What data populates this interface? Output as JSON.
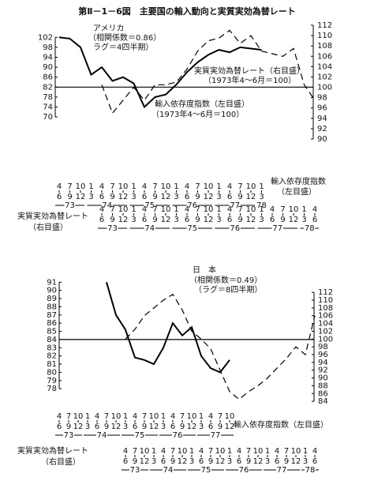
{
  "title": "第Ⅱ－1－6図　主要国の輸入動向と実質実効為替レート",
  "chart_data": [
    {
      "type": "line",
      "annotations": [
        "アメリカ",
        "（相関係数＝0.86）",
        "ラグ＝4四半期）",
        "実質実効為替レート（右目盛）",
        "（1973年4～6月＝100）",
        "輸入依存度指数（左目盛）",
        "（1973年4～6月＝100）"
      ],
      "categories": [
        "4",
        "7",
        "10",
        "1",
        "4",
        "7",
        "10",
        "1",
        "4",
        "7",
        "10",
        "1",
        "4",
        "7",
        "10",
        "1",
        "4",
        "7",
        "10",
        "1",
        null,
        null,
        null,
        null,
        null
      ],
      "categories_end": [
        "6",
        "9",
        "12",
        "3",
        "6",
        "9",
        "12",
        "3",
        "6",
        "9",
        "12",
        "3",
        "6",
        "9",
        "12",
        "3",
        "6",
        "9",
        "12",
        "3",
        null,
        null,
        null,
        null,
        null
      ],
      "years": [
        "73",
        "74",
        "75",
        "76",
        "77",
        "78"
      ],
      "x_label": [
        "輸入依存度指数",
        "（左目盛）"
      ],
      "categories2": [
        null,
        null,
        null,
        null,
        "4",
        "7",
        "10",
        "1",
        "4",
        "7",
        "10",
        "1",
        "4",
        "7",
        "10",
        "1",
        "4",
        "7",
        "10",
        "1",
        "4",
        "7",
        "10",
        "1",
        "4"
      ],
      "categories2_end": [
        null,
        null,
        null,
        null,
        "6",
        "9",
        "12",
        "3",
        "6",
        "9",
        "12",
        "3",
        "6",
        "9",
        "12",
        "3",
        "6",
        "9",
        "12",
        "3",
        "6",
        "9",
        "12",
        "3",
        "6"
      ],
      "years2": [
        "73",
        "74",
        "75",
        "76",
        "77",
        "78"
      ],
      "x2_label": [
        "実質実効為替レート",
        "（右目盛）"
      ],
      "series": [
        {
          "color": "#000000",
          "style": "solid",
          "axis": "y",
          "values": [
            102,
            101.5,
            98,
            87,
            90,
            84.5,
            86,
            83.5,
            74,
            78,
            79,
            83,
            88,
            92,
            95,
            97,
            96,
            98,
            97.5,
            97,
            null,
            null,
            null,
            null,
            null
          ]
        },
        {
          "color": "#000000",
          "style": "dashed",
          "axis": "y2",
          "values": [
            null,
            null,
            null,
            null,
            100.5,
            95,
            97.5,
            100,
            97.5,
            100.5,
            100.5,
            101,
            103.5,
            107,
            109,
            109.5,
            111,
            108.5,
            110,
            107,
            106.5,
            106,
            107.5,
            100.5,
            97.5
          ]
        }
      ],
      "ylim": [
        60.5,
        107.5
      ],
      "yticks": [
        70,
        74,
        78,
        82,
        86,
        90,
        94,
        98,
        102
      ],
      "y2lim": [
        89.7,
        112.3
      ],
      "y2ticks": [
        90,
        92,
        94,
        96,
        98,
        100,
        102,
        104,
        106,
        108,
        110,
        112
      ],
      "hline": 82
    },
    {
      "type": "line",
      "annotations": [
        "日　本",
        "（相関係数＝0.49）",
        "（ラグ＝8四半期）"
      ],
      "categories": [
        "4",
        "7",
        "10",
        "1",
        "4",
        "7",
        "10",
        "1",
        "4",
        "7",
        "10",
        "1",
        "4",
        "7",
        "10",
        "1",
        "4",
        "7",
        "10",
        null,
        null,
        null,
        null,
        null,
        null,
        null,
        null,
        null
      ],
      "categories_end": [
        "6",
        "9",
        "12",
        "3",
        "6",
        "9",
        "12",
        "3",
        "6",
        "9",
        "12",
        "3",
        "6",
        "9",
        "12",
        "3",
        "6",
        "9",
        "12",
        null,
        null,
        null,
        null,
        null,
        null,
        null,
        null,
        null
      ],
      "years": [
        "73",
        "74",
        "75",
        "76",
        "77"
      ],
      "x_label": [
        "輸入依存度指数（左目盛）"
      ],
      "categories2": [
        null,
        null,
        null,
        null,
        null,
        null,
        null,
        "4",
        "7",
        "10",
        "1",
        "4",
        "7",
        "10",
        "1",
        "4",
        "7",
        "10",
        "1",
        "4",
        "7",
        "10",
        "1",
        "4",
        "7",
        "10",
        "1",
        "4"
      ],
      "categories2_end": [
        null,
        null,
        null,
        null,
        null,
        null,
        null,
        "6",
        "9",
        "12",
        "3",
        "6",
        "9",
        "12",
        "3",
        "6",
        "9",
        "12",
        "3",
        "6",
        "9",
        "12",
        "3",
        "6",
        "9",
        "12",
        "3",
        "6"
      ],
      "years2": [
        "73",
        "74",
        "75",
        "76",
        "77",
        "78"
      ],
      "x2_label": [
        "実質実効為替レート",
        "（右目盛）"
      ],
      "series": [
        {
          "color": "#000000",
          "style": "solid",
          "axis": "y",
          "values": [
            null,
            null,
            null,
            null,
            null,
            91,
            87,
            85.2,
            81.8,
            81.5,
            81,
            83,
            86,
            84.5,
            85.5,
            82,
            80.5,
            80,
            81.5,
            null,
            null,
            null,
            null,
            null,
            null,
            null,
            null,
            null
          ]
        },
        {
          "color": "#000000",
          "style": "dashed",
          "axis": "y2",
          "values": [
            null,
            null,
            null,
            null,
            null,
            null,
            null,
            100,
            102.5,
            106,
            108,
            110,
            111.5,
            107.5,
            102,
            100,
            97.5,
            92,
            86.5,
            84.5,
            86.5,
            88,
            90,
            92.5,
            95,
            98,
            96,
            106
          ]
        }
      ],
      "ylim": [
        75.8,
        91.7
      ],
      "yticks": [
        78,
        79,
        80,
        81,
        82,
        83,
        84,
        85,
        86,
        87,
        88,
        89,
        90,
        91
      ],
      "y2lim": [
        82.6,
        116.1
      ],
      "y2ticks": [
        84,
        86,
        88,
        90,
        92,
        94,
        96,
        98,
        100,
        102,
        104,
        106,
        108,
        110,
        112
      ],
      "hline": 84
    }
  ]
}
